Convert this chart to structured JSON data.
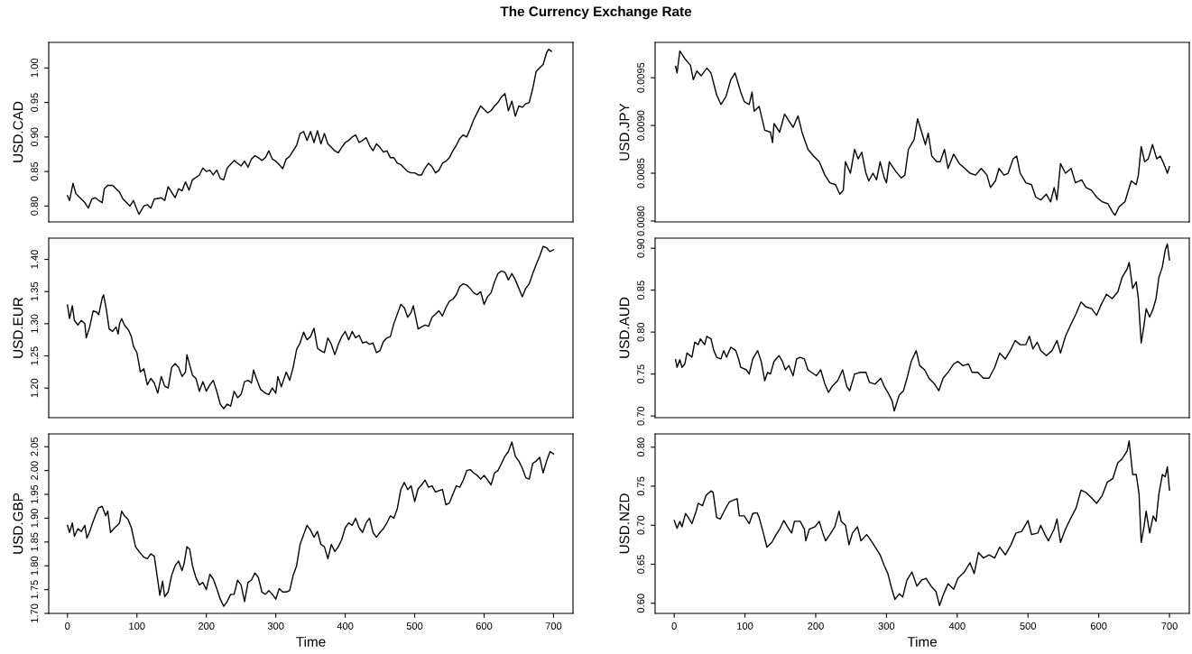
{
  "chart_data": [
    {
      "type": "line",
      "title": "The Currency Exchange Rate",
      "ylabel": "USD.CAD",
      "color": "#000000",
      "tick_labels": "y",
      "xlim": [
        -27,
        728
      ],
      "xticks": [
        0,
        100,
        200,
        300,
        400,
        500,
        600,
        700
      ],
      "ylim": [
        0.777,
        1.037
      ],
      "yticks": [
        {
          "value": 0.8,
          "label": "0.80"
        },
        0.85,
        {
          "value": 0.9,
          "label": "0.90"
        },
        0.95,
        {
          "value": 1.0,
          "label": "1.00"
        }
      ],
      "x": [
        0,
        3,
        8,
        12,
        18,
        25,
        30,
        35,
        40,
        45,
        50,
        53,
        58,
        65,
        70,
        75,
        80,
        85,
        90,
        95,
        100,
        103,
        110,
        115,
        120,
        125,
        135,
        140,
        145,
        150,
        155,
        160,
        165,
        170,
        175,
        180,
        190,
        195,
        200,
        205,
        210,
        215,
        220,
        225,
        230,
        240,
        245,
        250,
        255,
        260,
        265,
        270,
        275,
        280,
        285,
        290,
        295,
        300,
        305,
        310,
        315,
        320,
        325,
        330,
        335,
        340,
        345,
        350,
        355,
        360,
        365,
        370,
        375,
        380,
        385,
        390,
        395,
        400,
        405,
        410,
        415,
        420,
        425,
        430,
        435,
        440,
        445,
        450,
        455,
        460,
        465,
        470,
        475,
        480,
        485,
        490,
        495,
        500,
        505,
        510,
        515,
        520,
        525,
        530,
        535,
        540,
        545,
        550,
        555,
        560,
        565,
        570,
        575,
        580,
        585,
        590,
        595,
        600,
        605,
        610,
        615,
        620,
        625,
        630,
        635,
        640,
        645,
        650,
        655,
        660,
        665,
        670,
        675,
        680,
        685,
        690,
        693,
        697
      ],
      "values": [
        0.815,
        0.808,
        0.833,
        0.818,
        0.812,
        0.805,
        0.797,
        0.81,
        0.812,
        0.808,
        0.805,
        0.825,
        0.83,
        0.83,
        0.825,
        0.82,
        0.81,
        0.805,
        0.8,
        0.808,
        0.795,
        0.788,
        0.8,
        0.802,
        0.797,
        0.81,
        0.812,
        0.808,
        0.828,
        0.82,
        0.812,
        0.825,
        0.822,
        0.835,
        0.823,
        0.838,
        0.845,
        0.855,
        0.85,
        0.852,
        0.845,
        0.852,
        0.84,
        0.838,
        0.855,
        0.866,
        0.862,
        0.858,
        0.865,
        0.856,
        0.868,
        0.873,
        0.87,
        0.866,
        0.87,
        0.88,
        0.868,
        0.865,
        0.86,
        0.854,
        0.868,
        0.872,
        0.88,
        0.888,
        0.905,
        0.908,
        0.895,
        0.908,
        0.892,
        0.909,
        0.89,
        0.905,
        0.89,
        0.885,
        0.88,
        0.877,
        0.885,
        0.892,
        0.895,
        0.9,
        0.903,
        0.892,
        0.895,
        0.899,
        0.888,
        0.88,
        0.89,
        0.885,
        0.878,
        0.88,
        0.87,
        0.87,
        0.862,
        0.86,
        0.855,
        0.85,
        0.848,
        0.848,
        0.845,
        0.845,
        0.855,
        0.862,
        0.857,
        0.848,
        0.852,
        0.862,
        0.865,
        0.87,
        0.88,
        0.888,
        0.898,
        0.903,
        0.9,
        0.912,
        0.925,
        0.935,
        0.945,
        0.94,
        0.935,
        0.938,
        0.945,
        0.95,
        0.958,
        0.963,
        0.938,
        0.952,
        0.93,
        0.945,
        0.943,
        0.948,
        0.95,
        0.97,
        0.995,
        1.0,
        1.005,
        1.022,
        1.027,
        1.024
      ]
    },
    {
      "type": "line",
      "ylabel": "USD.JPY",
      "color": "#000000",
      "tick_labels": "y",
      "xlim": [
        -27,
        728
      ],
      "xticks": [
        0,
        100,
        200,
        300,
        400,
        500,
        600,
        700
      ],
      "ylim": [
        0.00799,
        0.00987
      ],
      "yticks": [
        {
          "value": 0.008,
          "label": "0.0080"
        },
        0.0085,
        {
          "value": 0.009,
          "label": "0.0090"
        },
        0.0095
      ],
      "x": [
        2,
        4,
        8,
        15,
        23,
        27,
        32,
        38,
        46,
        52,
        60,
        66,
        73,
        80,
        86,
        94,
        99,
        106,
        110,
        113,
        120,
        128,
        136,
        139,
        141,
        149,
        156,
        162,
        168,
        175,
        181,
        189,
        197,
        205,
        213,
        220,
        228,
        234,
        239,
        242,
        249,
        255,
        260,
        265,
        271,
        275,
        281,
        286,
        291,
        297,
        300,
        304,
        313,
        321,
        326,
        331,
        339,
        344,
        351,
        355,
        359,
        364,
        371,
        376,
        382,
        387,
        395,
        403,
        411,
        418,
        426,
        434,
        442,
        447,
        454,
        459,
        466,
        472,
        479,
        484,
        489,
        497,
        505,
        511,
        518,
        526,
        532,
        537,
        541,
        546,
        553,
        561,
        567,
        576,
        582,
        590,
        597,
        605,
        613,
        619,
        623,
        629,
        637,
        646,
        653,
        656,
        660,
        665,
        670,
        676,
        682,
        687,
        692,
        697,
        700
      ],
      "values": [
        0.00962,
        0.00955,
        0.00978,
        0.0097,
        0.00963,
        0.00948,
        0.00957,
        0.00952,
        0.0096,
        0.00955,
        0.00932,
        0.00922,
        0.0093,
        0.00948,
        0.00955,
        0.00935,
        0.00925,
        0.00922,
        0.00935,
        0.00915,
        0.0092,
        0.00895,
        0.00893,
        0.00882,
        0.00902,
        0.00893,
        0.00912,
        0.00905,
        0.00898,
        0.0091,
        0.00892,
        0.00875,
        0.00868,
        0.00862,
        0.00848,
        0.0084,
        0.00838,
        0.00828,
        0.00832,
        0.00862,
        0.0085,
        0.00875,
        0.00865,
        0.00872,
        0.0085,
        0.00842,
        0.0085,
        0.00843,
        0.00862,
        0.00845,
        0.0084,
        0.00862,
        0.00852,
        0.00845,
        0.00848,
        0.00875,
        0.00885,
        0.00907,
        0.0089,
        0.0088,
        0.00892,
        0.00868,
        0.00862,
        0.00862,
        0.00875,
        0.00855,
        0.0087,
        0.0086,
        0.00855,
        0.0085,
        0.00848,
        0.00855,
        0.00848,
        0.00835,
        0.00842,
        0.00855,
        0.00848,
        0.0085,
        0.00865,
        0.00868,
        0.0085,
        0.0084,
        0.00838,
        0.00825,
        0.00822,
        0.00828,
        0.0082,
        0.00835,
        0.00822,
        0.0086,
        0.0085,
        0.00855,
        0.0084,
        0.00843,
        0.00835,
        0.00832,
        0.00825,
        0.0082,
        0.00818,
        0.0081,
        0.00806,
        0.00815,
        0.0082,
        0.00842,
        0.00838,
        0.00848,
        0.00878,
        0.00862,
        0.00865,
        0.0088,
        0.00865,
        0.00868,
        0.0086,
        0.0085,
        0.00857
      ]
    },
    {
      "type": "line",
      "ylabel": "USD.EUR",
      "color": "#000000",
      "tick_labels": "y",
      "xlim": [
        -27,
        728
      ],
      "xticks": [
        0,
        100,
        200,
        300,
        400,
        500,
        600,
        700
      ],
      "ylim": [
        1.154,
        1.433
      ],
      "yticks": [
        {
          "value": 1.2,
          "label": "1.20"
        },
        1.25,
        {
          "value": 1.3,
          "label": "1.30"
        },
        1.35,
        {
          "value": 1.4,
          "label": "1.40"
        }
      ],
      "x": [
        0,
        3,
        7,
        10,
        15,
        20,
        25,
        27,
        32,
        37,
        42,
        45,
        50,
        52,
        56,
        60,
        65,
        70,
        73,
        75,
        78,
        82,
        88,
        92,
        95,
        100,
        105,
        110,
        115,
        120,
        125,
        130,
        135,
        140,
        145,
        150,
        155,
        160,
        165,
        170,
        172,
        175,
        180,
        185,
        190,
        195,
        200,
        205,
        210,
        215,
        220,
        225,
        230,
        235,
        240,
        245,
        250,
        255,
        260,
        265,
        268,
        272,
        278,
        285,
        290,
        295,
        300,
        303,
        308,
        315,
        320,
        325,
        330,
        335,
        340,
        345,
        350,
        355,
        360,
        365,
        370,
        375,
        380,
        385,
        390,
        395,
        400,
        405,
        410,
        415,
        420,
        425,
        430,
        435,
        440,
        445,
        450,
        455,
        460,
        465,
        470,
        480,
        485,
        490,
        495,
        498,
        505,
        510,
        515,
        520,
        525,
        530,
        535,
        540,
        545,
        550,
        555,
        560,
        565,
        570,
        575,
        580,
        585,
        590,
        595,
        600,
        605,
        610,
        615,
        620,
        625,
        630,
        635,
        640,
        645,
        650,
        655,
        660,
        665,
        670,
        675,
        680,
        685,
        690,
        695,
        700
      ],
      "values": [
        1.329,
        1.308,
        1.328,
        1.305,
        1.298,
        1.305,
        1.3,
        1.278,
        1.295,
        1.32,
        1.318,
        1.314,
        1.34,
        1.345,
        1.322,
        1.292,
        1.288,
        1.295,
        1.284,
        1.3,
        1.308,
        1.298,
        1.29,
        1.28,
        1.265,
        1.255,
        1.225,
        1.23,
        1.205,
        1.215,
        1.208,
        1.192,
        1.218,
        1.203,
        1.2,
        1.232,
        1.238,
        1.232,
        1.218,
        1.225,
        1.252,
        1.24,
        1.22,
        1.215,
        1.195,
        1.21,
        1.195,
        1.205,
        1.212,
        1.195,
        1.175,
        1.168,
        1.175,
        1.172,
        1.195,
        1.185,
        1.19,
        1.21,
        1.212,
        1.208,
        1.228,
        1.215,
        1.198,
        1.192,
        1.19,
        1.2,
        1.192,
        1.218,
        1.202,
        1.225,
        1.212,
        1.232,
        1.26,
        1.27,
        1.287,
        1.275,
        1.28,
        1.293,
        1.262,
        1.258,
        1.255,
        1.278,
        1.268,
        1.252,
        1.268,
        1.28,
        1.288,
        1.275,
        1.288,
        1.278,
        1.282,
        1.27,
        1.272,
        1.268,
        1.27,
        1.255,
        1.258,
        1.272,
        1.278,
        1.28,
        1.3,
        1.33,
        1.325,
        1.31,
        1.318,
        1.328,
        1.292,
        1.295,
        1.298,
        1.296,
        1.31,
        1.315,
        1.32,
        1.312,
        1.325,
        1.335,
        1.338,
        1.345,
        1.358,
        1.362,
        1.36,
        1.355,
        1.348,
        1.345,
        1.35,
        1.33,
        1.342,
        1.348,
        1.365,
        1.378,
        1.382,
        1.38,
        1.368,
        1.378,
        1.368,
        1.355,
        1.342,
        1.355,
        1.362,
        1.378,
        1.392,
        1.405,
        1.42,
        1.418,
        1.412,
        1.415
      ]
    },
    {
      "type": "line",
      "ylabel": "USD.AUD",
      "color": "#000000",
      "tick_labels": "y",
      "xlim": [
        -27,
        728
      ],
      "xticks": [
        0,
        100,
        200,
        300,
        400,
        500,
        600,
        700
      ],
      "ylim": [
        0.698,
        0.912
      ],
      "yticks": [
        {
          "value": 0.7,
          "label": "0.70"
        },
        0.75,
        {
          "value": 0.8,
          "label": "0.80"
        },
        0.85,
        {
          "value": 0.9,
          "label": "0.90"
        }
      ],
      "x": [
        2,
        4,
        8,
        11,
        15,
        18,
        25,
        29,
        34,
        37,
        43,
        46,
        52,
        56,
        60,
        66,
        70,
        74,
        80,
        87,
        91,
        94,
        102,
        106,
        111,
        118,
        123,
        128,
        132,
        136,
        141,
        148,
        153,
        157,
        162,
        168,
        173,
        178,
        184,
        189,
        194,
        201,
        207,
        213,
        218,
        223,
        231,
        238,
        244,
        248,
        255,
        263,
        271,
        276,
        284,
        292,
        297,
        302,
        308,
        311,
        318,
        324,
        330,
        335,
        342,
        347,
        354,
        360,
        368,
        374,
        380,
        387,
        395,
        401,
        408,
        416,
        421,
        429,
        437,
        445,
        453,
        460,
        468,
        475,
        482,
        489,
        497,
        502,
        507,
        513,
        518,
        526,
        534,
        541,
        546,
        553,
        560,
        568,
        575,
        582,
        590,
        597,
        603,
        611,
        619,
        627,
        633,
        640,
        643,
        648,
        653,
        656,
        660,
        664,
        667,
        672,
        677,
        681,
        685,
        690,
        694,
        697,
        700
      ],
      "values": [
        0.767,
        0.758,
        0.767,
        0.758,
        0.762,
        0.775,
        0.77,
        0.788,
        0.785,
        0.792,
        0.785,
        0.795,
        0.792,
        0.778,
        0.77,
        0.768,
        0.778,
        0.77,
        0.782,
        0.778,
        0.768,
        0.758,
        0.755,
        0.75,
        0.768,
        0.778,
        0.765,
        0.742,
        0.752,
        0.75,
        0.765,
        0.772,
        0.765,
        0.755,
        0.76,
        0.748,
        0.768,
        0.77,
        0.768,
        0.755,
        0.752,
        0.748,
        0.755,
        0.738,
        0.728,
        0.735,
        0.742,
        0.755,
        0.735,
        0.73,
        0.75,
        0.752,
        0.752,
        0.74,
        0.738,
        0.745,
        0.735,
        0.728,
        0.718,
        0.706,
        0.725,
        0.73,
        0.748,
        0.765,
        0.778,
        0.76,
        0.755,
        0.745,
        0.738,
        0.73,
        0.745,
        0.752,
        0.762,
        0.765,
        0.76,
        0.762,
        0.752,
        0.752,
        0.745,
        0.745,
        0.758,
        0.775,
        0.768,
        0.778,
        0.79,
        0.785,
        0.785,
        0.795,
        0.78,
        0.788,
        0.778,
        0.772,
        0.778,
        0.79,
        0.775,
        0.795,
        0.808,
        0.822,
        0.836,
        0.83,
        0.828,
        0.82,
        0.832,
        0.845,
        0.84,
        0.848,
        0.865,
        0.875,
        0.883,
        0.852,
        0.86,
        0.84,
        0.787,
        0.808,
        0.828,
        0.818,
        0.828,
        0.84,
        0.865,
        0.878,
        0.898,
        0.905,
        0.886
      ]
    },
    {
      "type": "line",
      "ylabel": "USD.GBP",
      "xlabel": "Time",
      "color": "#000000",
      "xlim": [
        -27,
        728
      ],
      "xticks": [
        0,
        100,
        200,
        300,
        400,
        500,
        600,
        700
      ],
      "ylim": [
        1.7,
        2.077
      ],
      "yticks": [
        {
          "value": 1.7,
          "label": "1.70"
        },
        1.75,
        {
          "value": 1.8,
          "label": "1.80"
        },
        1.85,
        {
          "value": 1.9,
          "label": "1.90"
        },
        1.95,
        {
          "value": 2.0,
          "label": "2.00"
        },
        2.05
      ],
      "x": [
        0,
        3,
        7,
        10,
        15,
        20,
        25,
        28,
        32,
        35,
        40,
        45,
        50,
        55,
        58,
        62,
        68,
        72,
        75,
        78,
        82,
        87,
        92,
        98,
        103,
        110,
        115,
        120,
        125,
        130,
        133,
        137,
        140,
        145,
        150,
        155,
        160,
        165,
        168,
        172,
        176,
        180,
        185,
        190,
        195,
        200,
        205,
        210,
        215,
        220,
        225,
        230,
        235,
        240,
        245,
        250,
        255,
        260,
        265,
        270,
        275,
        280,
        285,
        290,
        295,
        300,
        305,
        310,
        315,
        320,
        325,
        330,
        335,
        340,
        345,
        350,
        355,
        360,
        365,
        370,
        375,
        380,
        385,
        390,
        395,
        400,
        405,
        410,
        415,
        420,
        425,
        430,
        435,
        440,
        445,
        450,
        455,
        460,
        465,
        470,
        475,
        480,
        485,
        490,
        495,
        500,
        505,
        510,
        515,
        520,
        525,
        530,
        535,
        540,
        545,
        550,
        555,
        560,
        565,
        570,
        575,
        580,
        585,
        590,
        595,
        600,
        605,
        610,
        615,
        620,
        625,
        630,
        635,
        640,
        645,
        650,
        655,
        660,
        665,
        670,
        675,
        680,
        685,
        690,
        695,
        700
      ],
      "values": [
        1.885,
        1.87,
        1.89,
        1.862,
        1.878,
        1.872,
        1.885,
        1.858,
        1.872,
        1.885,
        1.905,
        1.922,
        1.925,
        1.905,
        1.915,
        1.87,
        1.88,
        1.885,
        1.89,
        1.915,
        1.905,
        1.898,
        1.88,
        1.84,
        1.83,
        1.818,
        1.815,
        1.825,
        1.82,
        1.77,
        1.738,
        1.768,
        1.735,
        1.745,
        1.78,
        1.8,
        1.81,
        1.79,
        1.805,
        1.84,
        1.835,
        1.8,
        1.775,
        1.76,
        1.765,
        1.75,
        1.782,
        1.772,
        1.752,
        1.73,
        1.715,
        1.725,
        1.74,
        1.74,
        1.77,
        1.76,
        1.725,
        1.765,
        1.77,
        1.785,
        1.775,
        1.745,
        1.74,
        1.748,
        1.74,
        1.73,
        1.752,
        1.745,
        1.745,
        1.748,
        1.78,
        1.8,
        1.845,
        1.865,
        1.885,
        1.875,
        1.86,
        1.872,
        1.845,
        1.84,
        1.815,
        1.845,
        1.83,
        1.84,
        1.855,
        1.88,
        1.89,
        1.885,
        1.9,
        1.88,
        1.87,
        1.89,
        1.9,
        1.87,
        1.86,
        1.87,
        1.878,
        1.89,
        1.905,
        1.9,
        1.92,
        1.96,
        1.975,
        1.96,
        1.968,
        1.935,
        1.962,
        1.97,
        1.98,
        1.965,
        1.968,
        1.955,
        1.958,
        1.96,
        1.928,
        1.932,
        1.95,
        1.968,
        1.965,
        1.98,
        2.0,
        2.002,
        1.995,
        1.99,
        1.982,
        1.99,
        1.98,
        1.97,
        1.995,
        2.0,
        2.015,
        2.03,
        2.04,
        2.06,
        2.03,
        2.02,
        2.005,
        1.985,
        1.982,
        2.015,
        2.02,
        2.028,
        1.995,
        2.02,
        2.04,
        2.035
      ]
    },
    {
      "type": "line",
      "ylabel": "USD.NZD",
      "xlabel": "Time",
      "color": "#000000",
      "xlim": [
        -27,
        728
      ],
      "xticks": [
        0,
        100,
        200,
        300,
        400,
        500,
        600,
        700
      ],
      "ylim": [
        0.587,
        0.817
      ],
      "yticks": [
        {
          "value": 0.6,
          "label": "0.60"
        },
        0.65,
        {
          "value": 0.7,
          "label": "0.70"
        },
        0.75,
        {
          "value": 0.8,
          "label": "0.80"
        }
      ],
      "x": [
        0,
        4,
        8,
        11,
        16,
        20,
        25,
        31,
        34,
        40,
        45,
        52,
        55,
        60,
        65,
        73,
        78,
        83,
        89,
        92,
        99,
        106,
        111,
        117,
        120,
        126,
        131,
        138,
        144,
        149,
        155,
        160,
        166,
        170,
        178,
        184,
        186,
        191,
        199,
        205,
        210,
        214,
        220,
        227,
        233,
        236,
        242,
        247,
        252,
        259,
        264,
        272,
        277,
        284,
        291,
        297,
        302,
        307,
        312,
        318,
        323,
        329,
        336,
        343,
        350,
        356,
        363,
        370,
        375,
        380,
        387,
        395,
        401,
        410,
        418,
        424,
        430,
        437,
        445,
        453,
        460,
        468,
        476,
        483,
        491,
        500,
        505,
        514,
        518,
        524,
        529,
        537,
        541,
        546,
        553,
        561,
        568,
        575,
        582,
        590,
        597,
        605,
        612,
        620,
        627,
        633,
        640,
        643,
        648,
        653,
        657,
        660,
        664,
        667,
        672,
        677,
        681,
        685,
        690,
        694,
        697,
        700
      ],
      "values": [
        0.706,
        0.696,
        0.705,
        0.698,
        0.715,
        0.71,
        0.702,
        0.718,
        0.728,
        0.725,
        0.738,
        0.744,
        0.742,
        0.71,
        0.708,
        0.722,
        0.73,
        0.732,
        0.734,
        0.712,
        0.712,
        0.702,
        0.715,
        0.716,
        0.71,
        0.69,
        0.672,
        0.678,
        0.688,
        0.695,
        0.706,
        0.698,
        0.69,
        0.705,
        0.705,
        0.695,
        0.68,
        0.695,
        0.698,
        0.705,
        0.69,
        0.68,
        0.688,
        0.698,
        0.718,
        0.705,
        0.7,
        0.675,
        0.69,
        0.698,
        0.68,
        0.688,
        0.682,
        0.672,
        0.662,
        0.648,
        0.638,
        0.62,
        0.605,
        0.612,
        0.608,
        0.63,
        0.64,
        0.622,
        0.63,
        0.632,
        0.622,
        0.615,
        0.597,
        0.61,
        0.625,
        0.618,
        0.632,
        0.64,
        0.652,
        0.638,
        0.665,
        0.658,
        0.662,
        0.658,
        0.672,
        0.662,
        0.675,
        0.69,
        0.692,
        0.706,
        0.688,
        0.69,
        0.7,
        0.688,
        0.68,
        0.695,
        0.708,
        0.678,
        0.695,
        0.71,
        0.722,
        0.745,
        0.742,
        0.735,
        0.728,
        0.738,
        0.755,
        0.76,
        0.78,
        0.785,
        0.795,
        0.808,
        0.765,
        0.765,
        0.74,
        0.678,
        0.698,
        0.718,
        0.69,
        0.712,
        0.705,
        0.74,
        0.765,
        0.762,
        0.775,
        0.745
      ]
    }
  ]
}
